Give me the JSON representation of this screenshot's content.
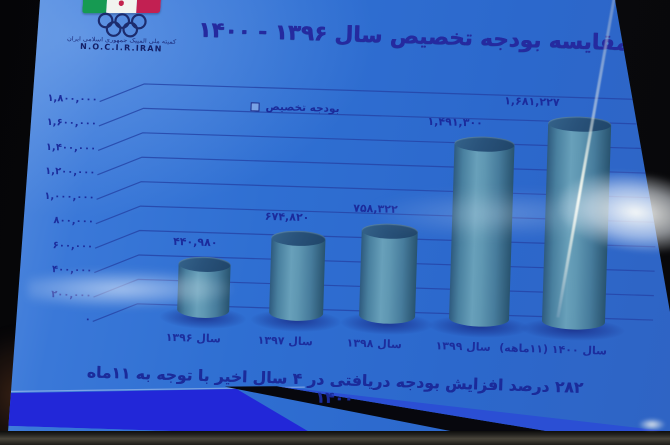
{
  "colors": {
    "slide_bg": "#2e6ed2",
    "text_navy": "#1c2d9d",
    "bar_fill": "#4e84a8",
    "stripe_blue": "#2227d8",
    "stripe_black": "#08080e"
  },
  "logo": {
    "persian_script": "کمیته ملی المپیک جمهوری اسلامی ایران",
    "latin": "N.O.C.I.R.IRAN"
  },
  "chart_data": {
    "type": "bar",
    "title": "مقایسه بودجه تخصیص سال ۱۳۹۶ - ۱۴۰۰",
    "legend": [
      "بودجه تخصیص"
    ],
    "legend_position": "inside-top-left",
    "grid": true,
    "categories": [
      "سال ۱۳۹۶",
      "سال ۱۳۹۷",
      "سال ۱۳۹۸",
      "سال ۱۳۹۹",
      "سال ۱۴۰۰ (۱۱ماهه)"
    ],
    "values": [
      440980,
      674820,
      758322,
      1491300,
      1681227
    ],
    "value_labels": [
      "۴۴۰,۹۸۰",
      "۶۷۴,۸۲۰",
      "۷۵۸,۳۲۲",
      "۱,۴۹۱,۳۰۰",
      "۱,۶۸۱,۲۲۷"
    ],
    "ylim": [
      0,
      1800000
    ],
    "ytick_labels": [
      "۱,۸۰۰,۰۰۰",
      "۱,۶۰۰,۰۰۰",
      "۱,۴۰۰,۰۰۰",
      "۱,۲۰۰,۰۰۰",
      "۱,۰۰۰,۰۰۰",
      "۸۰۰,۰۰۰",
      "۶۰۰,۰۰۰",
      "۴۰۰,۰۰۰",
      "۲۰۰,۰۰۰",
      "۰"
    ],
    "xlabel": "",
    "ylabel": ""
  },
  "footnote": "۲۸۲ درصد افزایش بودجه دریافتی در ۴ سال اخیر با توجه به ۱۱ماه ۱۴۰۰"
}
